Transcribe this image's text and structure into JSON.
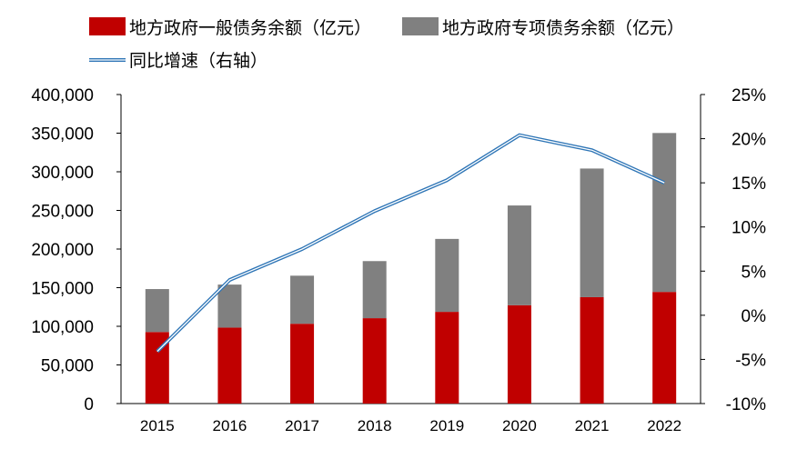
{
  "chart_data": {
    "type": "bar",
    "stacked": true,
    "categories": [
      "2015",
      "2016",
      "2017",
      "2018",
      "2019",
      "2020",
      "2021",
      "2022"
    ],
    "series": [
      {
        "name": "地方政府一般债务余额（亿元）",
        "type": "bar",
        "axis": "left",
        "color": "#c00000",
        "values": [
          92600,
          98300,
          103300,
          110500,
          118700,
          127300,
          137700,
          144500
        ]
      },
      {
        "name": "地方政府专项债务余额（亿元）",
        "type": "bar",
        "axis": "left",
        "color": "#808080",
        "values": [
          55600,
          55700,
          62200,
          73900,
          94400,
          129100,
          166500,
          205700
        ]
      },
      {
        "name": "同比增速（右轴）",
        "type": "line",
        "axis": "right",
        "color": "#2e75b6",
        "values": [
          -4.1,
          4.0,
          7.5,
          11.8,
          15.3,
          20.4,
          18.7,
          15.0
        ]
      }
    ],
    "y_left": {
      "min": 0,
      "max": 400000,
      "ticks": [
        0,
        50000,
        100000,
        150000,
        200000,
        250000,
        300000,
        350000,
        400000
      ],
      "tick_labels": [
        "0",
        "50,000",
        "100,000",
        "150,000",
        "200,000",
        "250,000",
        "300,000",
        "350,000",
        "400,000"
      ]
    },
    "y_right": {
      "min": -10,
      "max": 25,
      "ticks": [
        -10,
        -5,
        0,
        5,
        10,
        15,
        20,
        25
      ],
      "tick_labels": [
        "-10%",
        "-5%",
        "0%",
        "5%",
        "10%",
        "15%",
        "20%",
        "25%"
      ]
    },
    "grid": false,
    "legend_position": "top-left"
  }
}
